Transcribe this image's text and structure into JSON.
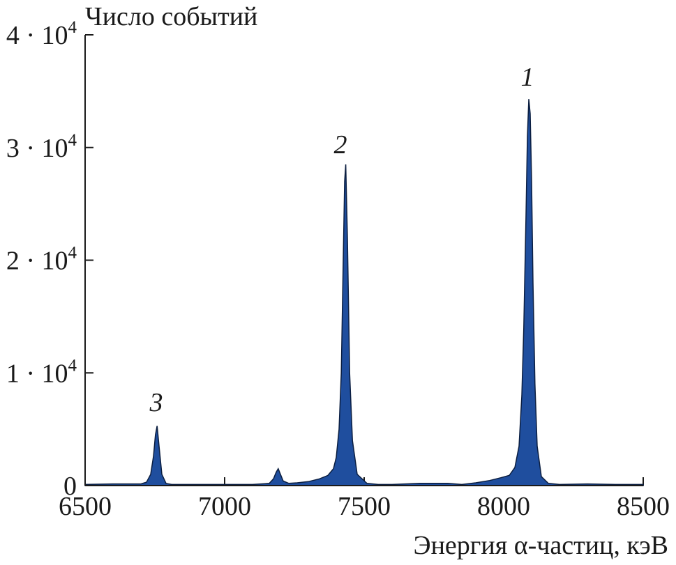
{
  "chart_data": {
    "type": "area",
    "ylabel": "Число событий",
    "xlabel": "Энергия α-частиц, кэВ",
    "xlim": [
      6500,
      8500
    ],
    "ylim": [
      0,
      40000
    ],
    "xticks": [
      {
        "value": 6500,
        "label": "6500"
      },
      {
        "value": 7000,
        "label": "7000"
      },
      {
        "value": 7500,
        "label": "7500"
      },
      {
        "value": 8000,
        "label": "8000"
      },
      {
        "value": 8500,
        "label": "8500"
      }
    ],
    "yticks": [
      {
        "value": 0,
        "mantissa": "0",
        "exponent": ""
      },
      {
        "value": 10000,
        "mantissa": "1 · 10",
        "exponent": "4"
      },
      {
        "value": 20000,
        "mantissa": "2 · 10",
        "exponent": "4"
      },
      {
        "value": 30000,
        "mantissa": "3 · 10",
        "exponent": "4"
      },
      {
        "value": 40000,
        "mantissa": "4 · 10",
        "exponent": "4"
      }
    ],
    "grid": false,
    "fill_color": "#1f4e9e",
    "outline_color": "#0b1e40",
    "series": [
      {
        "x": [
          6500,
          6600,
          6700,
          6720,
          6735,
          6745,
          6752,
          6758,
          6765,
          6775,
          6790,
          6810,
          6900,
          7000,
          7100,
          7160,
          7175,
          7185,
          7192,
          7200,
          7210,
          7230,
          7260,
          7300,
          7340,
          7370,
          7390,
          7400,
          7410,
          7418,
          7425,
          7430,
          7434,
          7440,
          7448,
          7458,
          7475,
          7510,
          7550,
          7600,
          7700,
          7800,
          7850,
          7900,
          7950,
          7990,
          8020,
          8040,
          8055,
          8065,
          8072,
          8080,
          8085,
          8090,
          8095,
          8100,
          8105,
          8112,
          8120,
          8135,
          8160,
          8200,
          8300,
          8400,
          8500
        ],
        "y": [
          100,
          150,
          150,
          300,
          1000,
          2600,
          4500,
          5300,
          3500,
          1000,
          200,
          100,
          100,
          100,
          100,
          200,
          600,
          1200,
          1500,
          1000,
          400,
          200,
          250,
          350,
          600,
          900,
          1500,
          2500,
          5000,
          10000,
          20000,
          27000,
          28500,
          22000,
          10000,
          4000,
          1000,
          200,
          100,
          100,
          200,
          200,
          100,
          250,
          450,
          700,
          900,
          1600,
          3500,
          8000,
          14000,
          24000,
          31000,
          34300,
          33000,
          27000,
          18000,
          9000,
          3500,
          800,
          200,
          100,
          150,
          100,
          100
        ]
      }
    ],
    "annotations": [
      {
        "label": "1",
        "x": 8085,
        "y": 35500
      },
      {
        "label": "2",
        "x": 7415,
        "y": 29500
      },
      {
        "label": "3",
        "x": 6755,
        "y": 6600
      }
    ]
  }
}
